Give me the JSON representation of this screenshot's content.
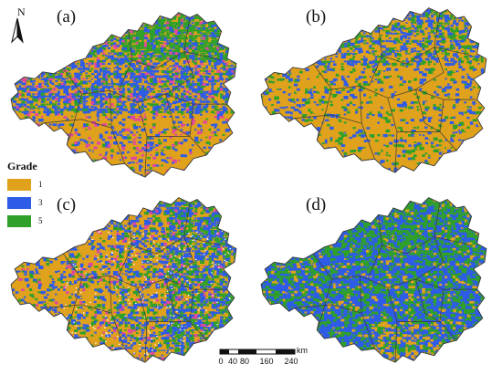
{
  "north_arrow": {
    "letter": "N"
  },
  "legend": {
    "title": "Grade",
    "items": [
      {
        "label": "1",
        "color": "#E0A21C"
      },
      {
        "label": "3",
        "color": "#2E5CE6"
      },
      {
        "label": "5",
        "color": "#2FA12A"
      }
    ]
  },
  "panels": [
    {
      "label": "(a)",
      "mix": {
        "orange": 0.38,
        "blue": 0.34,
        "green": 0.2,
        "pink": 0.08
      }
    },
    {
      "label": "(b)",
      "mix": {
        "orange": 0.82,
        "blue": 0.1,
        "green": 0.08,
        "pink": 0.0
      }
    },
    {
      "label": "(c)",
      "mix": {
        "orange": 0.55,
        "blue": 0.27,
        "green": 0.13,
        "pink": 0.05
      }
    },
    {
      "label": "(d)",
      "mix": {
        "orange": 0.1,
        "blue": 0.55,
        "green": 0.35,
        "pink": 0.0
      }
    }
  ],
  "scale_bar": {
    "unit": "km",
    "ticks": [
      "0",
      "40",
      "80",
      "160",
      "240"
    ]
  },
  "colors": {
    "boundary": "#3a3a3a",
    "pink": "#E0479E",
    "white_specks": "#ffffff"
  }
}
